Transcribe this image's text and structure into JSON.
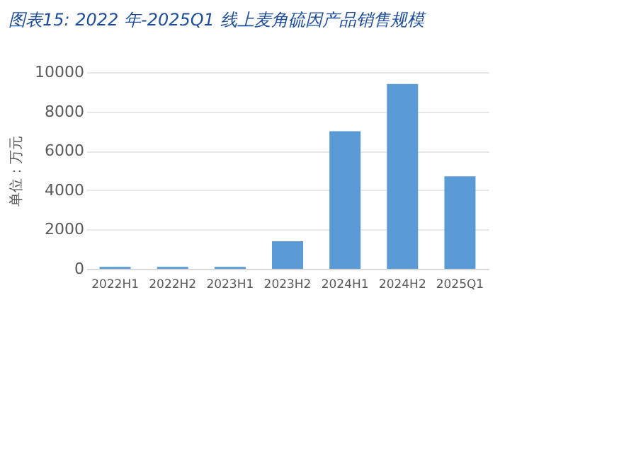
{
  "chart_data": {
    "type": "bar",
    "title": "图表15:  2022 年-2025Q1 线上麦角硫因产品销售规模",
    "ylabel": "单位：万元",
    "categories": [
      "2022H1",
      "2022H2",
      "2023H1",
      "2023H2",
      "2024H1",
      "2024H2",
      "2025Q1"
    ],
    "series": [
      {
        "color": "#5b9bd5",
        "values": [
          100,
          100,
          100,
          1400,
          7000,
          9400,
          4700
        ]
      }
    ],
    "ylim": [
      0,
      10000
    ],
    "yticks": [
      0,
      2000,
      4000,
      6000,
      8000,
      10000
    ],
    "grid": "y"
  }
}
